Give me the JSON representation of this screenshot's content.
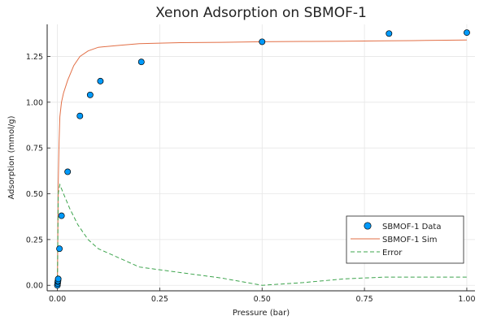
{
  "chart_data": {
    "type": "scatter",
    "title": "Xenon Adsorption on SBMOF-1",
    "xlabel": "Pressure (bar)",
    "ylabel": "Adsorption (mmol/g)",
    "xlim": [
      -0.025,
      1.02
    ],
    "ylim": [
      -0.03,
      1.425
    ],
    "x_ticks": [
      0.0,
      0.25,
      0.5,
      0.75,
      1.0
    ],
    "x_tick_labels": [
      "0.00",
      "0.25",
      "0.50",
      "0.75",
      "1.00"
    ],
    "y_ticks": [
      0.0,
      0.25,
      0.5,
      0.75,
      1.0,
      1.25
    ],
    "y_tick_labels": [
      "0.00",
      "0.25",
      "0.50",
      "0.75",
      "1.00",
      "1.25"
    ],
    "grid": true,
    "legend_position": "bottom-right",
    "series": [
      {
        "name": "SBMOF-1 Data",
        "kind": "scatter",
        "color": "#009AFA",
        "x": [
          0.0,
          0.0005,
          0.001,
          0.0015,
          0.002,
          0.005,
          0.01,
          0.025,
          0.055,
          0.08,
          0.105,
          0.205,
          0.5,
          0.81,
          1.0
        ],
        "y": [
          0.0,
          0.01,
          0.02,
          0.025,
          0.035,
          0.2,
          0.38,
          0.62,
          0.925,
          1.04,
          1.115,
          1.22,
          1.33,
          1.375,
          1.38
        ]
      },
      {
        "name": "SBMOF-1 Sim",
        "kind": "line",
        "color": "#E26F46",
        "x": [
          0.0,
          0.002,
          0.004,
          0.006,
          0.01,
          0.015,
          0.025,
          0.04,
          0.055,
          0.075,
          0.1,
          0.15,
          0.2,
          0.3,
          0.4,
          0.5,
          0.6,
          0.7,
          0.8,
          0.9,
          1.0
        ],
        "y": [
          0.0,
          0.55,
          0.78,
          0.92,
          1.0,
          1.05,
          1.12,
          1.2,
          1.25,
          1.28,
          1.3,
          1.31,
          1.32,
          1.325,
          1.327,
          1.33,
          1.332,
          1.333,
          1.335,
          1.337,
          1.34
        ]
      },
      {
        "name": "Error",
        "kind": "dashed-line",
        "color": "#3DA44D",
        "x": [
          0.0,
          0.002,
          0.006,
          0.015,
          0.03,
          0.05,
          0.075,
          0.1,
          0.15,
          0.2,
          0.3,
          0.4,
          0.5,
          0.6,
          0.7,
          0.8,
          0.9,
          1.0
        ],
        "y": [
          0.0,
          0.5,
          0.55,
          0.5,
          0.42,
          0.33,
          0.25,
          0.2,
          0.15,
          0.1,
          0.07,
          0.04,
          0.0,
          0.015,
          0.035,
          0.045,
          0.045,
          0.045
        ]
      }
    ]
  }
}
